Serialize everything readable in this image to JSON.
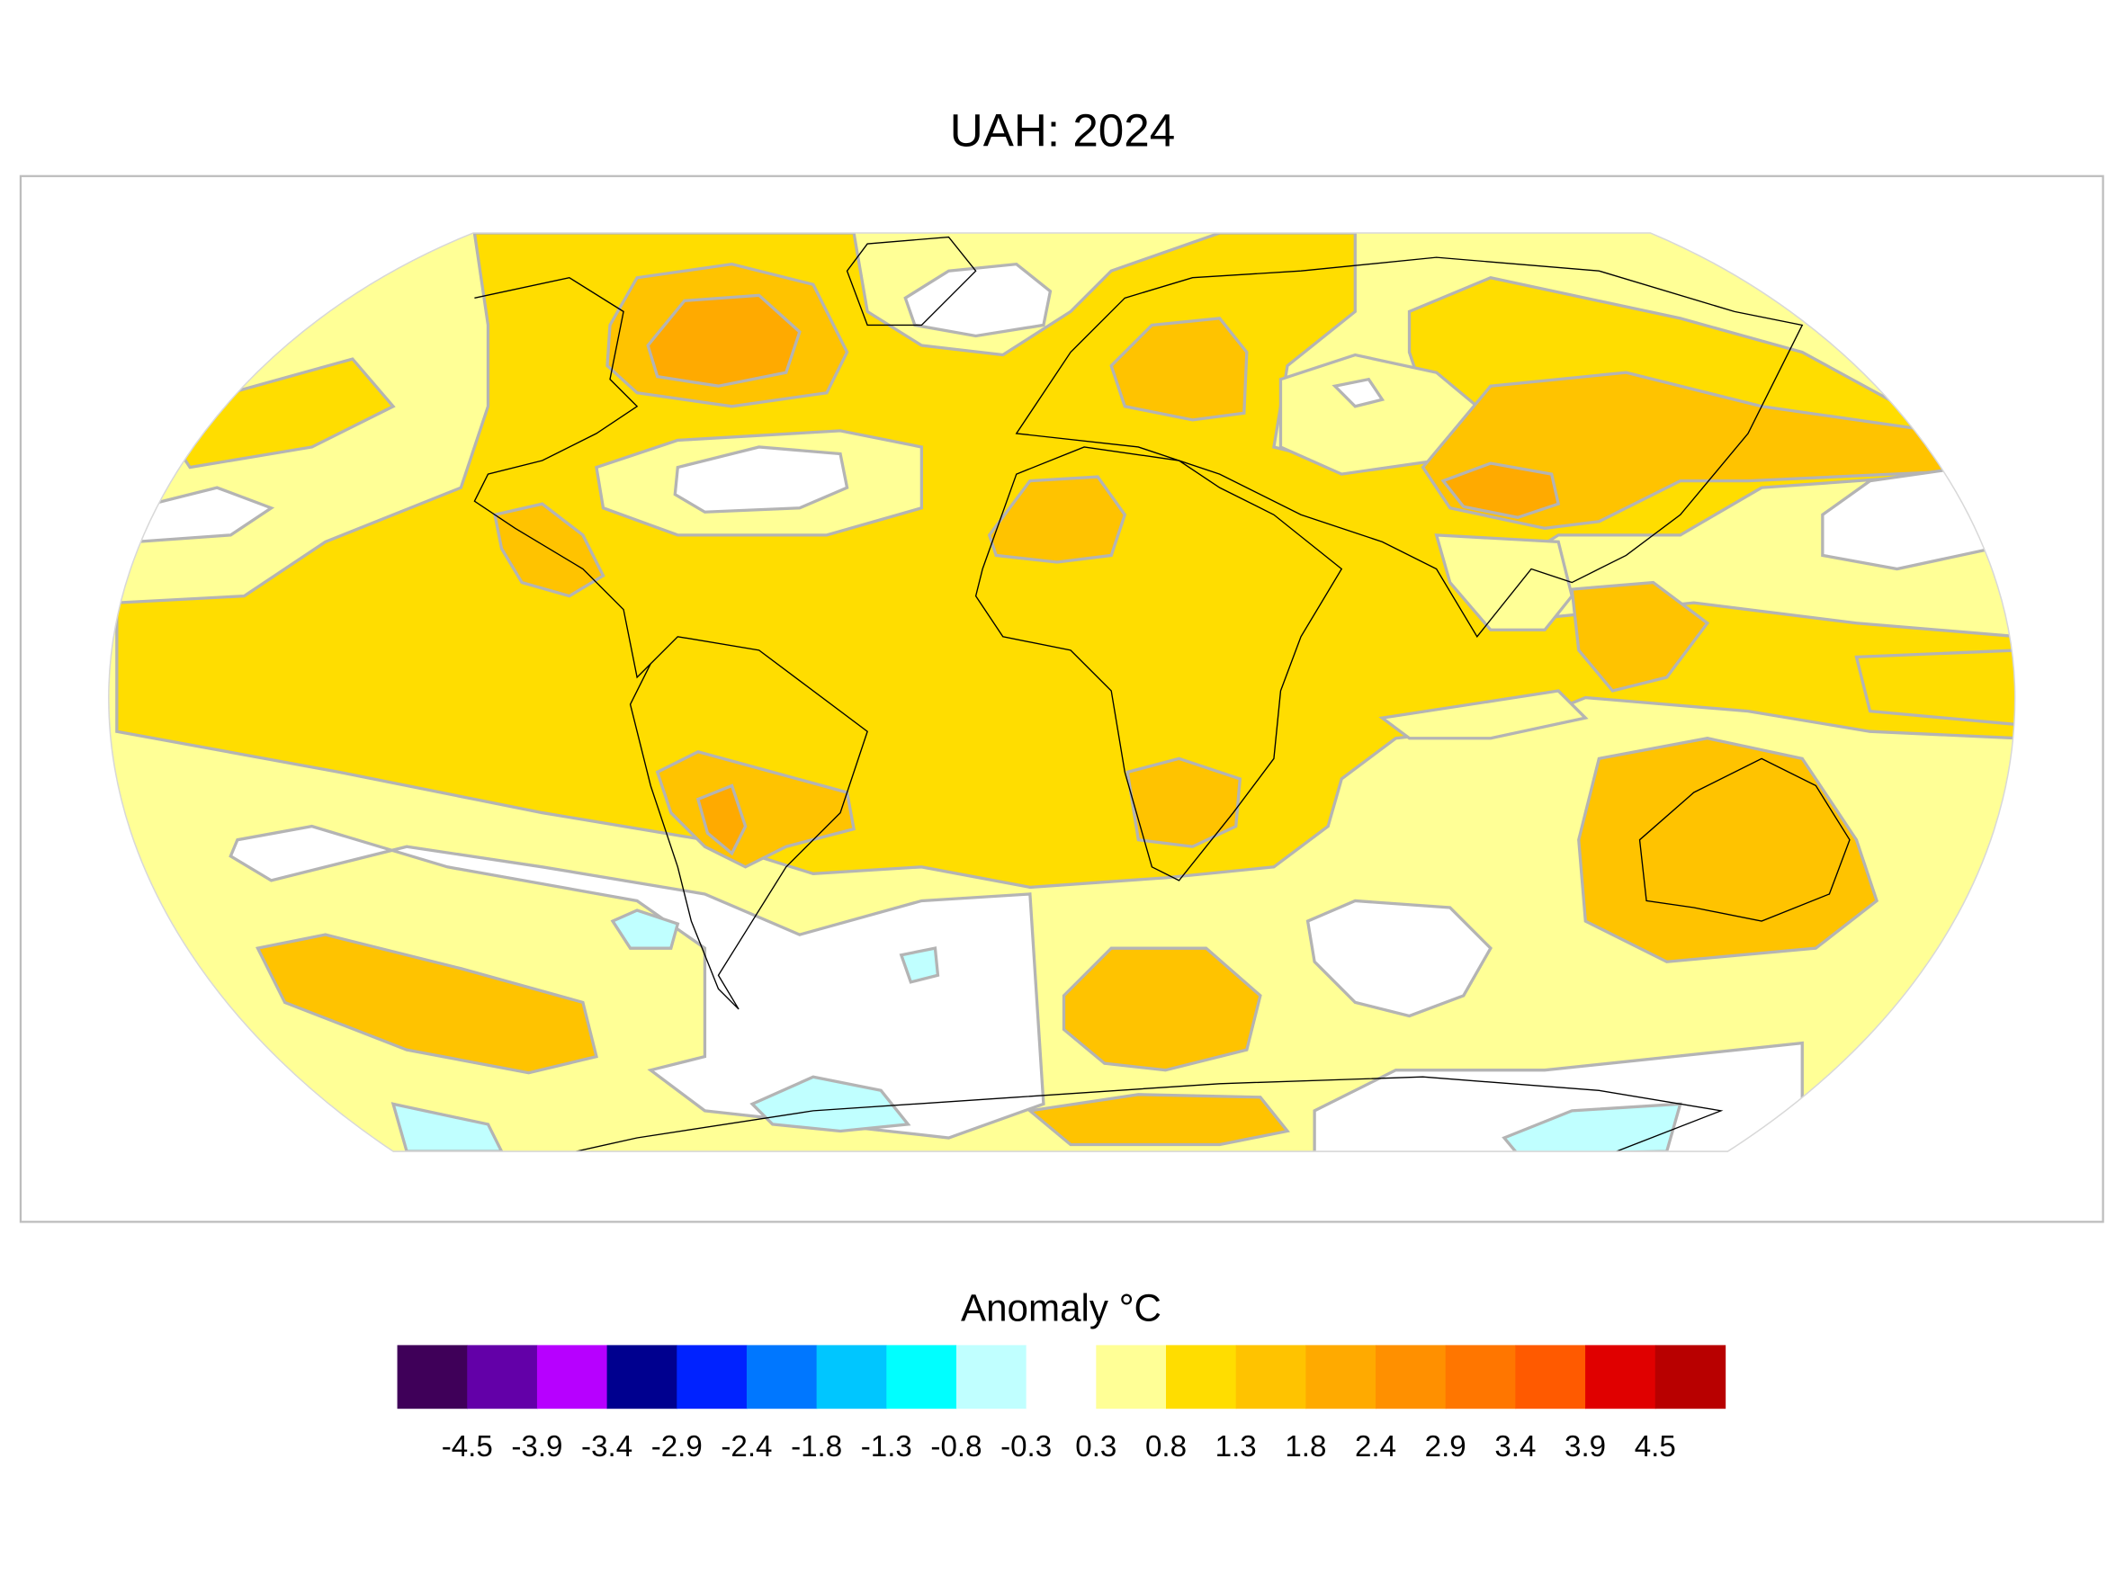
{
  "title": "UAH: 2024",
  "legend": {
    "title": "Anomaly °C",
    "colors": [
      "#3f0059",
      "#6300a8",
      "#b700ff",
      "#00008f",
      "#0022ff",
      "#0077ff",
      "#00c6ff",
      "#00ffff",
      "#c0ffff",
      "#ffffff",
      "#ffff96",
      "#ffdd00",
      "#ffc300",
      "#ffaa00",
      "#ff9000",
      "#ff7600",
      "#ff5a00",
      "#e00000",
      "#b80000"
    ],
    "ticks": [
      "-4.5",
      "-3.9",
      "-3.4",
      "-2.9",
      "-2.4",
      "-1.8",
      "-1.3",
      "-0.8",
      "-0.3",
      "0.3",
      "0.8",
      "1.3",
      "1.8",
      "2.4",
      "2.9",
      "3.4",
      "3.9",
      "4.5"
    ]
  },
  "map_colors": {
    "light_yellow": "#ffff96",
    "gold": "#ffdd00",
    "orange": "#ffc300",
    "dark_orange": "#ffaa00",
    "pale_cyan": "#c0ffff",
    "white": "#ffffff"
  }
}
